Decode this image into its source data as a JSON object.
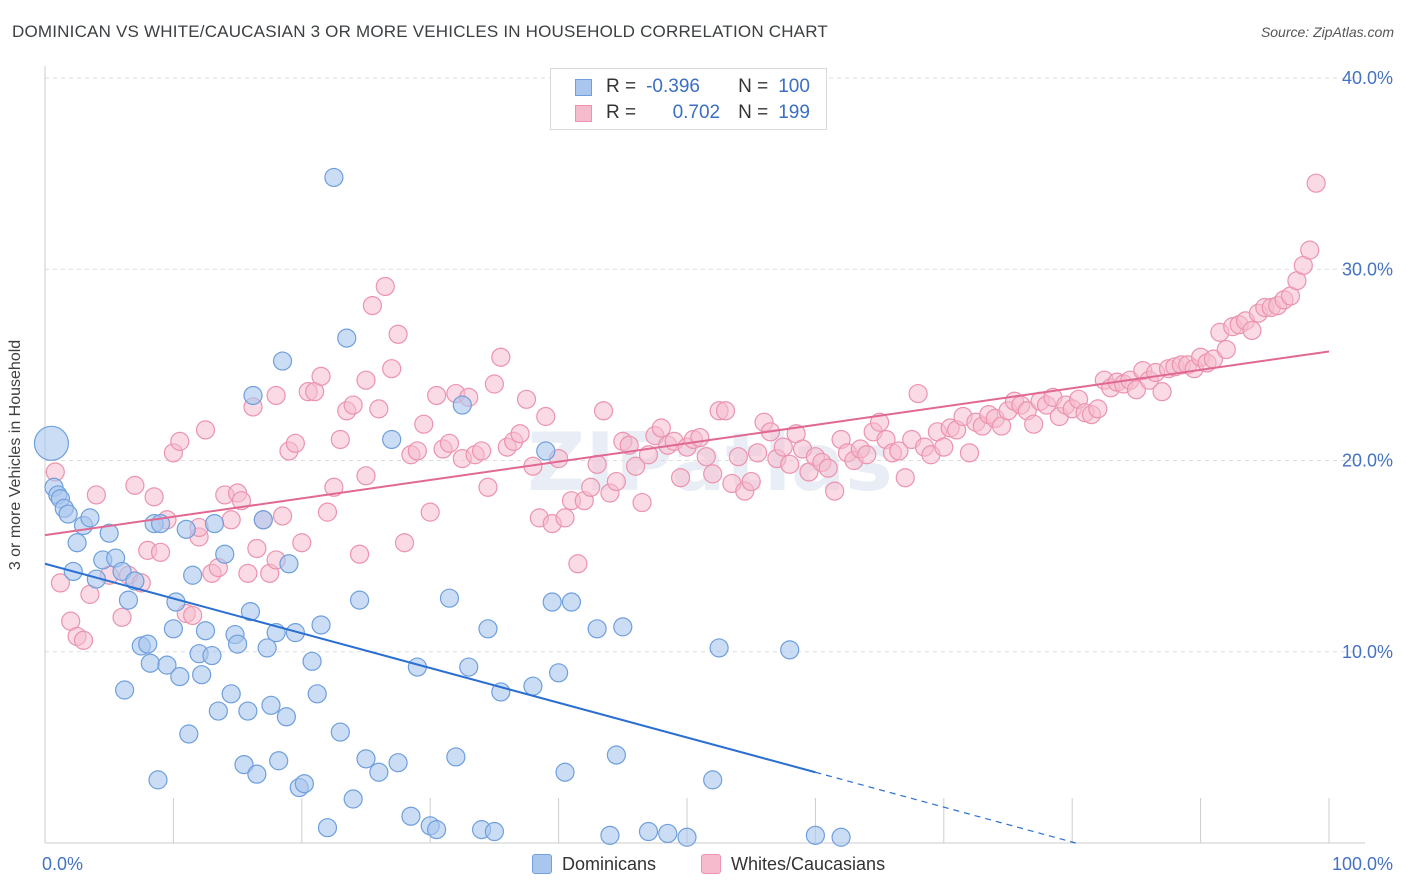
{
  "title": "DOMINICAN VS WHITE/CAUCASIAN 3 OR MORE VEHICLES IN HOUSEHOLD CORRELATION CHART",
  "source": "Source: ZipAtlas.com",
  "watermark": "ZIPatlas",
  "colors": {
    "blue_fill": "#a9c6ef",
    "blue_stroke": "#6f9fdc",
    "blue_line": "#2a6fd1",
    "pink_fill": "#f6bccd",
    "pink_stroke": "#ec93ae",
    "pink_line": "#e06892",
    "axis_text": "#4472c4",
    "grid": "#dddddd"
  },
  "legend": {
    "rows": [
      {
        "r_label": "R =",
        "r_value": "-0.396",
        "n_label": "N =",
        "n_value": "100"
      },
      {
        "r_label": "R =",
        "r_value": "0.702",
        "n_label": "N =",
        "n_value": "199"
      }
    ]
  },
  "bottom_legend": [
    "Dominicans",
    "Whites/Caucasians"
  ],
  "chart_data": {
    "type": "scatter",
    "title": "DOMINICAN VS WHITE/CAUCASIAN 3 OR MORE VEHICLES IN HOUSEHOLD CORRELATION CHART",
    "xlabel": "",
    "ylabel": "3 or more Vehicles in Household",
    "xlim": [
      0,
      100
    ],
    "ylim": [
      0,
      40
    ],
    "x_tick_labels": [
      "0.0%",
      "100.0%"
    ],
    "y_ticks": [
      10,
      20,
      30,
      40
    ],
    "y_tick_labels": [
      "10.0%",
      "20.0%",
      "30.0%",
      "40.0%"
    ],
    "grid": true,
    "legend_position": "top-center",
    "series": [
      {
        "name": "Dominicans",
        "color": "#a9c6ef",
        "trend": {
          "x": [
            0,
            60
          ],
          "y": [
            14.6,
            3.7
          ],
          "dashed_to": [
            100,
            -3.6
          ]
        },
        "points": [
          [
            0.5,
            20.9
          ],
          [
            0.7,
            18.6
          ],
          [
            1.0,
            18.2
          ],
          [
            1.2,
            18.0
          ],
          [
            1.5,
            17.5
          ],
          [
            1.8,
            17.2
          ],
          [
            2.2,
            14.2
          ],
          [
            2.5,
            15.7
          ],
          [
            3.0,
            16.6
          ],
          [
            3.5,
            17.0
          ],
          [
            4.0,
            13.8
          ],
          [
            4.5,
            14.8
          ],
          [
            5.0,
            16.2
          ],
          [
            5.5,
            14.9
          ],
          [
            6.0,
            14.2
          ],
          [
            6.2,
            8.0
          ],
          [
            6.5,
            12.7
          ],
          [
            7.0,
            13.7
          ],
          [
            7.5,
            10.3
          ],
          [
            8.0,
            10.4
          ],
          [
            8.2,
            9.4
          ],
          [
            8.5,
            16.7
          ],
          [
            8.8,
            3.3
          ],
          [
            9.0,
            16.7
          ],
          [
            9.5,
            9.3
          ],
          [
            10.0,
            11.2
          ],
          [
            10.2,
            12.6
          ],
          [
            10.5,
            8.7
          ],
          [
            11.0,
            16.4
          ],
          [
            11.2,
            5.7
          ],
          [
            11.5,
            14.0
          ],
          [
            12.0,
            9.9
          ],
          [
            12.2,
            8.8
          ],
          [
            12.5,
            11.1
          ],
          [
            13.0,
            9.8
          ],
          [
            13.2,
            16.7
          ],
          [
            13.5,
            6.9
          ],
          [
            14.0,
            15.1
          ],
          [
            14.5,
            7.8
          ],
          [
            14.8,
            10.9
          ],
          [
            15.0,
            10.4
          ],
          [
            15.5,
            4.1
          ],
          [
            15.8,
            6.9
          ],
          [
            16.0,
            12.1
          ],
          [
            16.2,
            23.4
          ],
          [
            16.5,
            3.6
          ],
          [
            17.0,
            16.9
          ],
          [
            17.3,
            10.2
          ],
          [
            17.6,
            7.2
          ],
          [
            18.0,
            11.0
          ],
          [
            18.2,
            4.3
          ],
          [
            18.5,
            25.2
          ],
          [
            18.8,
            6.6
          ],
          [
            19.0,
            14.6
          ],
          [
            19.5,
            11.0
          ],
          [
            19.8,
            2.9
          ],
          [
            20.2,
            3.1
          ],
          [
            20.8,
            9.5
          ],
          [
            21.2,
            7.8
          ],
          [
            21.5,
            11.4
          ],
          [
            22.0,
            0.8
          ],
          [
            22.5,
            34.8
          ],
          [
            23.0,
            5.8
          ],
          [
            23.5,
            26.4
          ],
          [
            24.0,
            2.3
          ],
          [
            24.5,
            12.7
          ],
          [
            25.0,
            4.4
          ],
          [
            26.0,
            3.7
          ],
          [
            27.0,
            21.1
          ],
          [
            27.5,
            4.2
          ],
          [
            28.5,
            1.4
          ],
          [
            29.0,
            9.2
          ],
          [
            30.0,
            0.9
          ],
          [
            30.5,
            0.7
          ],
          [
            31.5,
            12.8
          ],
          [
            32.0,
            4.5
          ],
          [
            32.5,
            22.9
          ],
          [
            33.0,
            9.2
          ],
          [
            34.0,
            0.7
          ],
          [
            34.5,
            11.2
          ],
          [
            35.0,
            0.6
          ],
          [
            35.5,
            7.9
          ],
          [
            38.0,
            8.2
          ],
          [
            39.0,
            20.5
          ],
          [
            39.5,
            12.6
          ],
          [
            40.0,
            8.9
          ],
          [
            40.5,
            3.7
          ],
          [
            41.0,
            12.6
          ],
          [
            43.0,
            11.2
          ],
          [
            44.0,
            0.4
          ],
          [
            44.5,
            4.6
          ],
          [
            45.0,
            11.3
          ],
          [
            47.0,
            0.6
          ],
          [
            48.5,
            0.5
          ],
          [
            50.0,
            0.3
          ],
          [
            52.0,
            3.3
          ],
          [
            52.5,
            10.2
          ],
          [
            58.0,
            10.1
          ],
          [
            60.0,
            0.4
          ],
          [
            62.0,
            0.3
          ]
        ]
      },
      {
        "name": "Whites/Caucasians",
        "color": "#f6bccd",
        "trend": {
          "x": [
            0,
            100
          ],
          "y": [
            16.1,
            25.7
          ]
        },
        "points": [
          [
            0.8,
            19.4
          ],
          [
            1.2,
            13.6
          ],
          [
            2.0,
            11.6
          ],
          [
            2.5,
            10.8
          ],
          [
            3.0,
            10.6
          ],
          [
            3.5,
            13.0
          ],
          [
            4.0,
            18.2
          ],
          [
            5.0,
            14.0
          ],
          [
            6.0,
            11.8
          ],
          [
            6.5,
            14.0
          ],
          [
            7.0,
            18.7
          ],
          [
            7.5,
            13.6
          ],
          [
            8.0,
            15.3
          ],
          [
            8.5,
            18.1
          ],
          [
            9.0,
            15.2
          ],
          [
            9.5,
            16.9
          ],
          [
            10.0,
            20.4
          ],
          [
            10.5,
            21.0
          ],
          [
            11.0,
            12.0
          ],
          [
            11.5,
            11.9
          ],
          [
            12.0,
            16.0
          ],
          [
            12.5,
            21.6
          ],
          [
            13.0,
            14.1
          ],
          [
            13.5,
            14.4
          ],
          [
            14.0,
            18.2
          ],
          [
            14.5,
            16.9
          ],
          [
            15.0,
            18.3
          ],
          [
            15.3,
            17.9
          ],
          [
            15.8,
            14.1
          ],
          [
            16.2,
            22.8
          ],
          [
            16.5,
            15.4
          ],
          [
            17.0,
            16.9
          ],
          [
            17.5,
            14.1
          ],
          [
            18.0,
            23.4
          ],
          [
            18.5,
            17.1
          ],
          [
            19.0,
            20.5
          ],
          [
            19.5,
            20.9
          ],
          [
            20.0,
            15.7
          ],
          [
            20.5,
            23.6
          ],
          [
            21.0,
            23.6
          ],
          [
            21.5,
            24.4
          ],
          [
            22.0,
            17.3
          ],
          [
            22.5,
            18.6
          ],
          [
            23.0,
            21.1
          ],
          [
            23.5,
            22.6
          ],
          [
            24.0,
            22.9
          ],
          [
            24.5,
            15.1
          ],
          [
            25.0,
            24.2
          ],
          [
            25.5,
            28.1
          ],
          [
            26.0,
            22.7
          ],
          [
            26.5,
            29.1
          ],
          [
            27.0,
            24.8
          ],
          [
            27.5,
            26.6
          ],
          [
            28.0,
            15.7
          ],
          [
            28.5,
            20.3
          ],
          [
            29.0,
            20.5
          ],
          [
            29.5,
            21.9
          ],
          [
            30.0,
            17.3
          ],
          [
            30.5,
            23.4
          ],
          [
            31.0,
            20.6
          ],
          [
            31.5,
            20.9
          ],
          [
            32.0,
            23.5
          ],
          [
            32.5,
            20.1
          ],
          [
            33.0,
            23.3
          ],
          [
            33.5,
            20.3
          ],
          [
            34.0,
            20.5
          ],
          [
            34.5,
            18.6
          ],
          [
            35.0,
            24.0
          ],
          [
            35.5,
            25.4
          ],
          [
            36.0,
            20.7
          ],
          [
            36.5,
            21.0
          ],
          [
            37.0,
            21.4
          ],
          [
            37.5,
            23.2
          ],
          [
            38.0,
            19.7
          ],
          [
            38.5,
            17.0
          ],
          [
            39.0,
            22.3
          ],
          [
            39.5,
            16.7
          ],
          [
            40.0,
            20.1
          ],
          [
            40.5,
            17.0
          ],
          [
            41.0,
            17.9
          ],
          [
            41.5,
            14.6
          ],
          [
            42.0,
            17.9
          ],
          [
            42.5,
            18.6
          ],
          [
            43.0,
            19.8
          ],
          [
            43.5,
            22.6
          ],
          [
            44.0,
            18.3
          ],
          [
            44.5,
            18.9
          ],
          [
            45.0,
            21.0
          ],
          [
            45.5,
            20.8
          ],
          [
            46.0,
            19.7
          ],
          [
            46.5,
            17.8
          ],
          [
            47.0,
            20.3
          ],
          [
            47.5,
            21.3
          ],
          [
            48.0,
            21.7
          ],
          [
            48.5,
            20.8
          ],
          [
            49.0,
            21.0
          ],
          [
            49.5,
            19.1
          ],
          [
            50.0,
            20.7
          ],
          [
            50.5,
            21.1
          ],
          [
            51.0,
            21.2
          ],
          [
            51.5,
            20.2
          ],
          [
            52.0,
            19.3
          ],
          [
            52.5,
            22.6
          ],
          [
            53.0,
            22.6
          ],
          [
            53.5,
            18.8
          ],
          [
            54.0,
            20.2
          ],
          [
            54.5,
            18.4
          ],
          [
            55.0,
            18.9
          ],
          [
            55.5,
            20.4
          ],
          [
            56.0,
            22.0
          ],
          [
            56.5,
            21.5
          ],
          [
            57.0,
            20.1
          ],
          [
            57.5,
            20.7
          ],
          [
            58.0,
            19.8
          ],
          [
            58.5,
            21.4
          ],
          [
            59.0,
            20.6
          ],
          [
            59.5,
            19.4
          ],
          [
            60.0,
            20.2
          ],
          [
            60.5,
            19.9
          ],
          [
            61.0,
            19.6
          ],
          [
            61.5,
            18.4
          ],
          [
            62.0,
            21.1
          ],
          [
            62.5,
            20.4
          ],
          [
            63.0,
            20.0
          ],
          [
            63.5,
            20.6
          ],
          [
            64.0,
            20.3
          ],
          [
            64.5,
            21.5
          ],
          [
            65.0,
            22.0
          ],
          [
            65.5,
            21.1
          ],
          [
            66.0,
            20.4
          ],
          [
            66.5,
            20.5
          ],
          [
            67.0,
            19.1
          ],
          [
            67.5,
            21.1
          ],
          [
            68.0,
            23.5
          ],
          [
            68.5,
            20.7
          ],
          [
            69.0,
            20.3
          ],
          [
            69.5,
            21.5
          ],
          [
            70.0,
            20.7
          ],
          [
            70.5,
            21.7
          ],
          [
            71.0,
            21.6
          ],
          [
            71.5,
            22.3
          ],
          [
            72.0,
            20.4
          ],
          [
            72.5,
            22.0
          ],
          [
            73.0,
            21.8
          ],
          [
            73.5,
            22.4
          ],
          [
            74.0,
            22.2
          ],
          [
            74.5,
            21.8
          ],
          [
            75.0,
            22.6
          ],
          [
            75.5,
            23.1
          ],
          [
            76.0,
            22.9
          ],
          [
            76.5,
            22.6
          ],
          [
            77.0,
            21.9
          ],
          [
            77.5,
            23.1
          ],
          [
            78.0,
            22.9
          ],
          [
            78.5,
            23.3
          ],
          [
            79.0,
            22.3
          ],
          [
            79.5,
            22.9
          ],
          [
            80.0,
            22.7
          ],
          [
            80.5,
            23.2
          ],
          [
            81.0,
            22.5
          ],
          [
            81.5,
            22.4
          ],
          [
            82.0,
            22.7
          ],
          [
            82.5,
            24.2
          ],
          [
            83.0,
            23.8
          ],
          [
            83.5,
            24.1
          ],
          [
            84.0,
            24.0
          ],
          [
            84.5,
            24.2
          ],
          [
            85.0,
            23.7
          ],
          [
            85.5,
            24.7
          ],
          [
            86.0,
            24.2
          ],
          [
            86.5,
            24.6
          ],
          [
            87.0,
            23.6
          ],
          [
            87.5,
            24.8
          ],
          [
            88.0,
            24.9
          ],
          [
            88.5,
            25.0
          ],
          [
            89.0,
            25.0
          ],
          [
            89.5,
            24.8
          ],
          [
            90.0,
            25.4
          ],
          [
            90.5,
            25.1
          ],
          [
            91.0,
            25.3
          ],
          [
            91.5,
            26.7
          ],
          [
            92.0,
            25.8
          ],
          [
            92.5,
            27.0
          ],
          [
            93.0,
            27.1
          ],
          [
            93.5,
            27.3
          ],
          [
            94.0,
            26.8
          ],
          [
            94.5,
            27.7
          ],
          [
            95.0,
            28.0
          ],
          [
            95.5,
            28.0
          ],
          [
            96.0,
            28.1
          ],
          [
            96.5,
            28.4
          ],
          [
            97.0,
            28.6
          ],
          [
            97.5,
            29.4
          ],
          [
            98.0,
            30.2
          ],
          [
            98.5,
            31.0
          ],
          [
            99.0,
            34.5
          ],
          [
            25.0,
            19.2
          ],
          [
            12.0,
            16.5
          ],
          [
            18.0,
            14.8
          ]
        ]
      }
    ]
  }
}
